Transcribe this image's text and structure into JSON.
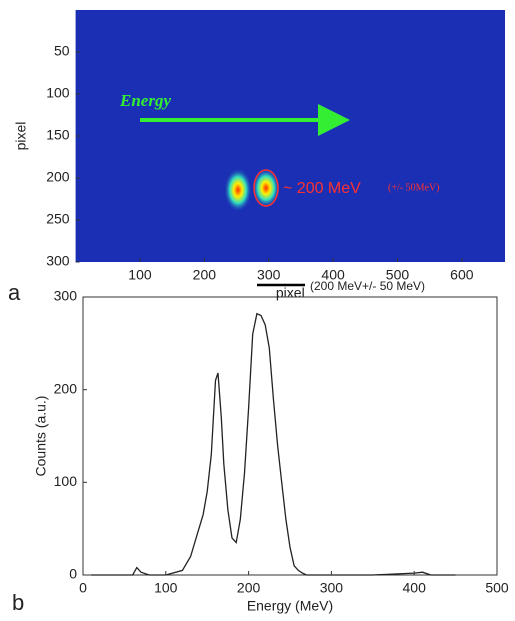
{
  "chart_data": [
    {
      "type": "image",
      "panel_label": "a",
      "xlabel": "pixel",
      "ylabel": "pixel",
      "xlim": [
        0,
        667
      ],
      "ylim": [
        0,
        300
      ],
      "y_reversed": true,
      "xticks": [
        100,
        200,
        300,
        400,
        500,
        600
      ],
      "yticks": [
        50,
        100,
        150,
        200,
        250,
        300
      ],
      "background": "#1a2fb4",
      "annotations": {
        "arrow": "Energy",
        "peak": "~ 200 MeV",
        "spread": "(+/- 50MeV)"
      }
    },
    {
      "type": "line",
      "panel_label": "b",
      "xlabel": "Energy (MeV)",
      "ylabel": "Counts (a.u.)",
      "xlim": [
        0,
        500
      ],
      "ylim": [
        0,
        300
      ],
      "xticks": [
        0,
        100,
        200,
        300,
        400,
        500
      ],
      "yticks": [
        0,
        100,
        200,
        300
      ],
      "annotation": "(200 MeV+/- 50 MeV)",
      "series": [
        {
          "color": "#222222",
          "x": [
            10,
            60,
            65,
            70,
            80,
            100,
            120,
            130,
            140,
            145,
            150,
            155,
            160,
            163,
            167,
            170,
            175,
            180,
            185,
            190,
            195,
            200,
            205,
            210,
            215,
            220,
            225,
            230,
            235,
            240,
            245,
            250,
            255,
            260,
            265,
            270,
            280,
            300,
            350,
            400,
            410,
            420,
            450
          ],
          "values": [
            0,
            0,
            8,
            3,
            0,
            0,
            5,
            20,
            50,
            65,
            90,
            130,
            210,
            218,
            170,
            120,
            70,
            40,
            35,
            60,
            110,
            180,
            260,
            282,
            280,
            270,
            245,
            190,
            140,
            100,
            60,
            30,
            10,
            5,
            2,
            0,
            0,
            0,
            0,
            2,
            3,
            0,
            0
          ]
        }
      ]
    }
  ]
}
